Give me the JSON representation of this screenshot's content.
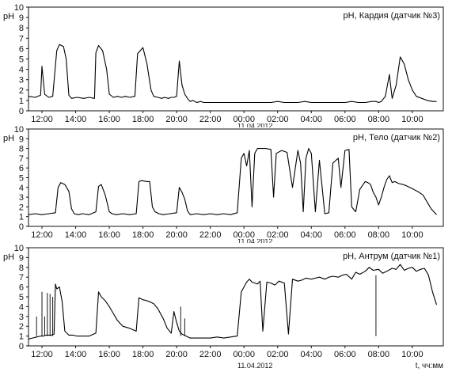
{
  "chart_data": [
    {
      "type": "line",
      "title": "pH, Кардия (датчик №3)",
      "ylabel": "pH",
      "ylim": [
        0,
        10
      ],
      "yticks": [
        0,
        1,
        2,
        3,
        4,
        5,
        6,
        7,
        8,
        9,
        10
      ],
      "xticks": [
        "12:00",
        "14:00",
        "16:00",
        "18:00",
        "20:00",
        "22:00",
        "00:00",
        "02:00",
        "04:00",
        "06:00",
        "08:00",
        "10:00"
      ],
      "date_label": "11.04.2012",
      "grid": false,
      "series": [
        {
          "x": [
            0,
            0.5,
            0.9,
            1.0,
            1.2,
            1.5,
            1.8,
            2.1,
            2.3,
            2.6,
            2.8,
            3.0,
            3.2,
            3.6,
            4.1,
            4.5,
            4.9,
            5.0,
            5.2,
            5.5,
            5.8,
            6.0,
            6.3,
            6.6,
            6.9,
            7.2,
            7.5,
            7.9,
            8.1,
            8.5,
            8.8,
            9.1,
            9.3,
            9.6,
            9.9,
            10.1,
            10.4,
            10.6,
            10.8,
            11.0,
            11.2,
            11.4,
            11.6,
            11.8,
            12.0,
            12.2,
            12.5,
            12.8,
            13.0,
            13.2,
            13.4,
            13.8,
            14.3,
            14.8,
            15.2,
            15.6,
            16.0,
            16.5,
            17.0,
            17.5,
            18.0,
            18.5,
            19.0,
            19.5,
            20.0,
            20.5,
            21.0,
            21.5,
            22.0,
            22.5,
            23.0,
            23.5,
            24.0,
            24.5,
            25.0,
            25.5,
            25.8,
            26.0,
            26.2,
            26.5,
            26.8,
            27.0,
            27.3,
            27.6,
            27.9,
            28.2,
            28.5,
            28.8,
            29.2,
            29.6,
            30.0,
            30.3
          ],
          "y": [
            1.4,
            1.3,
            1.5,
            4.3,
            1.6,
            1.3,
            1.4,
            5.8,
            6.4,
            6.2,
            5.0,
            1.5,
            1.2,
            1.3,
            1.2,
            1.3,
            1.2,
            5.6,
            6.3,
            5.8,
            4.0,
            1.6,
            1.3,
            1.4,
            1.3,
            1.4,
            1.3,
            1.4,
            5.5,
            6.1,
            4.5,
            2.0,
            1.4,
            1.3,
            1.2,
            1.3,
            1.2,
            1.3,
            1.3,
            1.4,
            4.8,
            2.5,
            1.6,
            1.2,
            0.9,
            1.0,
            0.8,
            0.9,
            0.8,
            0.8,
            0.8,
            0.8,
            0.8,
            0.8,
            0.8,
            0.8,
            0.8,
            0.8,
            0.8,
            0.8,
            0.8,
            0.9,
            0.8,
            0.8,
            0.8,
            0.9,
            0.8,
            0.8,
            0.8,
            0.8,
            0.8,
            0.8,
            0.9,
            0.8,
            0.8,
            0.9,
            0.9,
            0.8,
            0.9,
            1.4,
            3.5,
            1.2,
            2.5,
            5.2,
            4.5,
            3.0,
            2.0,
            1.4,
            1.2,
            1.0,
            0.9,
            0.9
          ]
        }
      ]
    },
    {
      "type": "line",
      "title": "pH, Тело (датчик №2)",
      "ylabel": "pH",
      "ylim": [
        0,
        10
      ],
      "yticks": [
        0,
        1,
        2,
        3,
        4,
        5,
        6,
        7,
        8,
        9,
        10
      ],
      "xticks": [
        "12:00",
        "14:00",
        "16:00",
        "18:00",
        "20:00",
        "22:00",
        "00:00",
        "02:00",
        "04:00",
        "06:00",
        "08:00",
        "10:00"
      ],
      "date_label": "11.04.2012",
      "grid": false,
      "series": [
        {
          "x": [
            0,
            0.5,
            1.0,
            1.5,
            2.0,
            2.2,
            2.4,
            2.7,
            3.0,
            3.2,
            3.4,
            3.7,
            4.0,
            4.5,
            5.0,
            5.2,
            5.4,
            5.7,
            6.0,
            6.2,
            6.5,
            7.0,
            7.5,
            8.0,
            8.2,
            8.4,
            8.8,
            9.0,
            9.2,
            9.4,
            9.7,
            10.0,
            10.5,
            11.0,
            11.2,
            11.4,
            11.6,
            11.8,
            12.0,
            12.5,
            13.0,
            13.5,
            14.0,
            14.5,
            15.0,
            15.5,
            15.8,
            16.0,
            16.2,
            16.4,
            16.6,
            16.8,
            17.0,
            17.3,
            17.6,
            18.0,
            18.2,
            18.4,
            18.8,
            19.2,
            19.6,
            20.0,
            20.2,
            20.4,
            20.6,
            20.8,
            21.0,
            21.3,
            21.6,
            22.0,
            22.3,
            22.6,
            23.0,
            23.2,
            23.5,
            23.8,
            24.0,
            24.3,
            24.6,
            25.0,
            25.2,
            25.4,
            25.6,
            25.8,
            26.0,
            26.2,
            26.4,
            26.6,
            26.8,
            27.0,
            27.2,
            27.5,
            27.8,
            28.0,
            28.3,
            28.6,
            29.0,
            29.3,
            29.6,
            29.9,
            30.3
          ],
          "y": [
            1.2,
            1.3,
            1.2,
            1.3,
            1.4,
            4.0,
            4.5,
            4.3,
            3.6,
            1.8,
            1.3,
            1.2,
            1.3,
            1.2,
            1.5,
            4.1,
            4.3,
            3.2,
            1.5,
            1.3,
            1.2,
            1.3,
            1.2,
            1.3,
            4.6,
            4.7,
            4.6,
            4.6,
            2.0,
            1.5,
            1.3,
            1.2,
            1.3,
            1.4,
            4.0,
            3.5,
            2.8,
            1.6,
            1.2,
            1.3,
            1.2,
            1.3,
            1.2,
            1.3,
            1.2,
            1.4,
            7.0,
            7.5,
            6.2,
            7.8,
            2.0,
            7.5,
            8.0,
            8.0,
            8.0,
            7.9,
            3.0,
            7.5,
            7.8,
            7.6,
            4.0,
            7.8,
            6.5,
            1.5,
            7.0,
            8.0,
            7.5,
            1.5,
            6.8,
            1.3,
            1.4,
            6.5,
            7.0,
            4.0,
            7.8,
            7.9,
            2.0,
            1.5,
            3.8,
            4.6,
            4.5,
            4.3,
            3.5,
            3.0,
            2.2,
            3.0,
            4.0,
            4.8,
            5.2,
            4.5,
            4.6,
            4.4,
            4.3,
            4.2,
            4.0,
            3.8,
            3.5,
            3.2,
            2.5,
            1.8,
            1.2
          ]
        }
      ]
    },
    {
      "type": "line",
      "title": "pH, Антрум (датчик №1)",
      "ylabel": "pH",
      "xlabel": "t, чч:мм",
      "ylim": [
        0,
        10
      ],
      "yticks": [
        0,
        1,
        2,
        3,
        4,
        5,
        6,
        7,
        8,
        9,
        10
      ],
      "xticks": [
        "12:00",
        "14:00",
        "16:00",
        "18:00",
        "20:00",
        "22:00",
        "00:00",
        "02:00",
        "04:00",
        "06:00",
        "08:00",
        "10:00"
      ],
      "date_label": "11.04.2012",
      "grid": false,
      "series": [
        {
          "x": [
            0,
            0.3,
            0.6,
            0.9,
            1.1,
            1.3,
            1.5,
            1.7,
            1.9,
            2.0,
            2.1,
            2.3,
            2.5,
            2.7,
            3.0,
            3.3,
            3.6,
            4.0,
            4.5,
            5.0,
            5.2,
            5.4,
            5.7,
            6.0,
            6.3,
            6.6,
            7.0,
            7.5,
            8.0,
            8.2,
            8.5,
            8.8,
            9.0,
            9.3,
            9.6,
            10.0,
            10.3,
            10.6,
            10.8,
            11.0,
            11.2,
            11.4,
            11.7,
            12.0,
            12.5,
            13.0,
            13.5,
            14.0,
            14.5,
            15.0,
            15.5,
            15.8,
            16.0,
            16.2,
            16.4,
            16.6,
            16.8,
            17.0,
            17.2,
            17.4,
            17.7,
            18.0,
            18.3,
            18.6,
            19.0,
            19.3,
            19.6,
            20.0,
            20.3,
            20.6,
            21.0,
            21.3,
            21.6,
            22.0,
            22.3,
            22.6,
            23.0,
            23.3,
            23.6,
            24.0,
            24.3,
            24.6,
            25.0,
            25.3,
            25.6,
            26.0,
            26.3,
            26.6,
            27.0,
            27.3,
            27.6,
            27.9,
            28.2,
            28.5,
            28.8,
            29.1,
            29.4,
            29.7,
            30.0,
            30.3
          ],
          "y": [
            0.7,
            0.8,
            0.9,
            1.0,
            1.0,
            1.1,
            1.1,
            1.1,
            1.2,
            6.3,
            5.8,
            6.0,
            4.5,
            1.5,
            1.1,
            1.1,
            1.0,
            1.0,
            1.0,
            1.3,
            5.5,
            5.0,
            4.6,
            4.0,
            3.3,
            2.6,
            2.0,
            1.8,
            1.5,
            4.9,
            4.7,
            4.6,
            4.5,
            4.3,
            3.8,
            2.8,
            1.8,
            1.3,
            3.5,
            2.4,
            1.5,
            1.2,
            1.0,
            0.8,
            0.8,
            0.8,
            0.8,
            0.9,
            0.8,
            0.9,
            1.0,
            5.5,
            6.0,
            6.5,
            6.8,
            6.5,
            6.4,
            6.3,
            6.6,
            1.5,
            6.5,
            6.4,
            6.2,
            6.6,
            6.4,
            1.2,
            6.8,
            6.6,
            6.7,
            6.9,
            6.8,
            6.9,
            7.0,
            6.8,
            7.0,
            7.1,
            7.0,
            7.2,
            7.3,
            6.8,
            7.5,
            7.3,
            7.6,
            8.0,
            7.7,
            7.8,
            7.4,
            7.6,
            7.9,
            7.8,
            8.3,
            7.7,
            7.9,
            8.0,
            7.6,
            7.8,
            7.9,
            7.2,
            5.5,
            4.2
          ]
        }
      ],
      "spikes": {
        "x": [
          0.6,
          1.0,
          1.2,
          1.4,
          1.6,
          1.8,
          11.3,
          11.6,
          25.8
        ],
        "y": [
          3.0,
          5.5,
          3.0,
          5.4,
          5.3,
          5.0,
          4.0,
          2.8,
          7.2
        ]
      }
    }
  ]
}
